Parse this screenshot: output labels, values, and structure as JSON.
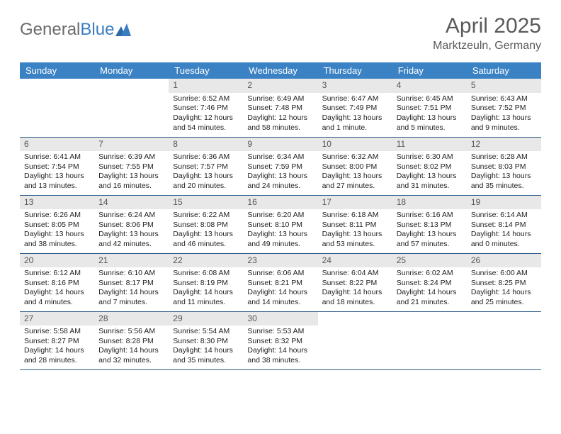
{
  "logo": {
    "text1": "General",
    "text2": "Blue"
  },
  "title": "April 2025",
  "subtitle": "Marktzeuln, Germany",
  "colors": {
    "header_bg": "#3b82c4",
    "header_text": "#ffffff",
    "daynum_bg": "#e8e8e8",
    "cell_border": "#2a5a8a",
    "logo_gray": "#6a6a6a",
    "logo_blue": "#3a7cc0",
    "title_color": "#5a5a5a"
  },
  "day_headers": [
    "Sunday",
    "Monday",
    "Tuesday",
    "Wednesday",
    "Thursday",
    "Friday",
    "Saturday"
  ],
  "weeks": [
    [
      {
        "day": "",
        "sunrise": "",
        "sunset": "",
        "daylight": ""
      },
      {
        "day": "",
        "sunrise": "",
        "sunset": "",
        "daylight": ""
      },
      {
        "day": "1",
        "sunrise": "Sunrise: 6:52 AM",
        "sunset": "Sunset: 7:46 PM",
        "daylight": "Daylight: 12 hours and 54 minutes."
      },
      {
        "day": "2",
        "sunrise": "Sunrise: 6:49 AM",
        "sunset": "Sunset: 7:48 PM",
        "daylight": "Daylight: 12 hours and 58 minutes."
      },
      {
        "day": "3",
        "sunrise": "Sunrise: 6:47 AM",
        "sunset": "Sunset: 7:49 PM",
        "daylight": "Daylight: 13 hours and 1 minute."
      },
      {
        "day": "4",
        "sunrise": "Sunrise: 6:45 AM",
        "sunset": "Sunset: 7:51 PM",
        "daylight": "Daylight: 13 hours and 5 minutes."
      },
      {
        "day": "5",
        "sunrise": "Sunrise: 6:43 AM",
        "sunset": "Sunset: 7:52 PM",
        "daylight": "Daylight: 13 hours and 9 minutes."
      }
    ],
    [
      {
        "day": "6",
        "sunrise": "Sunrise: 6:41 AM",
        "sunset": "Sunset: 7:54 PM",
        "daylight": "Daylight: 13 hours and 13 minutes."
      },
      {
        "day": "7",
        "sunrise": "Sunrise: 6:39 AM",
        "sunset": "Sunset: 7:55 PM",
        "daylight": "Daylight: 13 hours and 16 minutes."
      },
      {
        "day": "8",
        "sunrise": "Sunrise: 6:36 AM",
        "sunset": "Sunset: 7:57 PM",
        "daylight": "Daylight: 13 hours and 20 minutes."
      },
      {
        "day": "9",
        "sunrise": "Sunrise: 6:34 AM",
        "sunset": "Sunset: 7:59 PM",
        "daylight": "Daylight: 13 hours and 24 minutes."
      },
      {
        "day": "10",
        "sunrise": "Sunrise: 6:32 AM",
        "sunset": "Sunset: 8:00 PM",
        "daylight": "Daylight: 13 hours and 27 minutes."
      },
      {
        "day": "11",
        "sunrise": "Sunrise: 6:30 AM",
        "sunset": "Sunset: 8:02 PM",
        "daylight": "Daylight: 13 hours and 31 minutes."
      },
      {
        "day": "12",
        "sunrise": "Sunrise: 6:28 AM",
        "sunset": "Sunset: 8:03 PM",
        "daylight": "Daylight: 13 hours and 35 minutes."
      }
    ],
    [
      {
        "day": "13",
        "sunrise": "Sunrise: 6:26 AM",
        "sunset": "Sunset: 8:05 PM",
        "daylight": "Daylight: 13 hours and 38 minutes."
      },
      {
        "day": "14",
        "sunrise": "Sunrise: 6:24 AM",
        "sunset": "Sunset: 8:06 PM",
        "daylight": "Daylight: 13 hours and 42 minutes."
      },
      {
        "day": "15",
        "sunrise": "Sunrise: 6:22 AM",
        "sunset": "Sunset: 8:08 PM",
        "daylight": "Daylight: 13 hours and 46 minutes."
      },
      {
        "day": "16",
        "sunrise": "Sunrise: 6:20 AM",
        "sunset": "Sunset: 8:10 PM",
        "daylight": "Daylight: 13 hours and 49 minutes."
      },
      {
        "day": "17",
        "sunrise": "Sunrise: 6:18 AM",
        "sunset": "Sunset: 8:11 PM",
        "daylight": "Daylight: 13 hours and 53 minutes."
      },
      {
        "day": "18",
        "sunrise": "Sunrise: 6:16 AM",
        "sunset": "Sunset: 8:13 PM",
        "daylight": "Daylight: 13 hours and 57 minutes."
      },
      {
        "day": "19",
        "sunrise": "Sunrise: 6:14 AM",
        "sunset": "Sunset: 8:14 PM",
        "daylight": "Daylight: 14 hours and 0 minutes."
      }
    ],
    [
      {
        "day": "20",
        "sunrise": "Sunrise: 6:12 AM",
        "sunset": "Sunset: 8:16 PM",
        "daylight": "Daylight: 14 hours and 4 minutes."
      },
      {
        "day": "21",
        "sunrise": "Sunrise: 6:10 AM",
        "sunset": "Sunset: 8:17 PM",
        "daylight": "Daylight: 14 hours and 7 minutes."
      },
      {
        "day": "22",
        "sunrise": "Sunrise: 6:08 AM",
        "sunset": "Sunset: 8:19 PM",
        "daylight": "Daylight: 14 hours and 11 minutes."
      },
      {
        "day": "23",
        "sunrise": "Sunrise: 6:06 AM",
        "sunset": "Sunset: 8:21 PM",
        "daylight": "Daylight: 14 hours and 14 minutes."
      },
      {
        "day": "24",
        "sunrise": "Sunrise: 6:04 AM",
        "sunset": "Sunset: 8:22 PM",
        "daylight": "Daylight: 14 hours and 18 minutes."
      },
      {
        "day": "25",
        "sunrise": "Sunrise: 6:02 AM",
        "sunset": "Sunset: 8:24 PM",
        "daylight": "Daylight: 14 hours and 21 minutes."
      },
      {
        "day": "26",
        "sunrise": "Sunrise: 6:00 AM",
        "sunset": "Sunset: 8:25 PM",
        "daylight": "Daylight: 14 hours and 25 minutes."
      }
    ],
    [
      {
        "day": "27",
        "sunrise": "Sunrise: 5:58 AM",
        "sunset": "Sunset: 8:27 PM",
        "daylight": "Daylight: 14 hours and 28 minutes."
      },
      {
        "day": "28",
        "sunrise": "Sunrise: 5:56 AM",
        "sunset": "Sunset: 8:28 PM",
        "daylight": "Daylight: 14 hours and 32 minutes."
      },
      {
        "day": "29",
        "sunrise": "Sunrise: 5:54 AM",
        "sunset": "Sunset: 8:30 PM",
        "daylight": "Daylight: 14 hours and 35 minutes."
      },
      {
        "day": "30",
        "sunrise": "Sunrise: 5:53 AM",
        "sunset": "Sunset: 8:32 PM",
        "daylight": "Daylight: 14 hours and 38 minutes."
      },
      {
        "day": "",
        "sunrise": "",
        "sunset": "",
        "daylight": ""
      },
      {
        "day": "",
        "sunrise": "",
        "sunset": "",
        "daylight": ""
      },
      {
        "day": "",
        "sunrise": "",
        "sunset": "",
        "daylight": ""
      }
    ]
  ]
}
